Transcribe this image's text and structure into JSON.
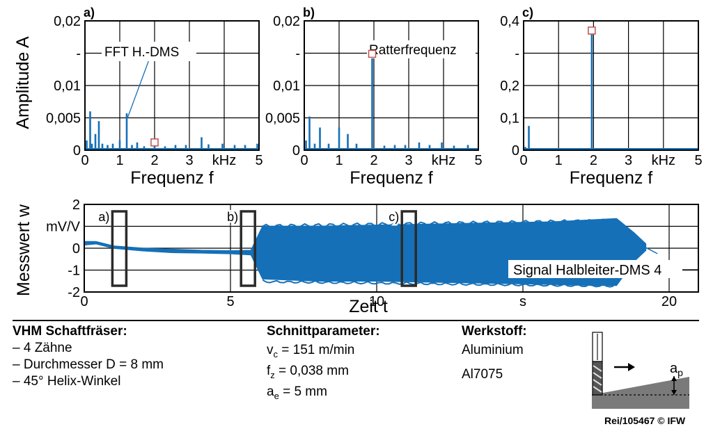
{
  "chart_data": [
    {
      "id": "a",
      "type": "bar",
      "panel_label": "a)",
      "title": "",
      "xlabel": "Frequenz f",
      "ylabel": "Amplitude A",
      "xlim": [
        0,
        5
      ],
      "ylim": [
        0,
        0.02
      ],
      "xticks": [
        "0",
        "1",
        "2",
        "3",
        "kHz",
        "5"
      ],
      "yticks": [
        "0",
        "0,005",
        "0,01",
        "-",
        "0,02"
      ],
      "grid": true,
      "annotation": "FFT H.-DMS",
      "marker": {
        "x": 2.0,
        "y": 0.0012
      },
      "x": [
        0.05,
        0.15,
        0.2,
        0.3,
        0.4,
        0.5,
        0.65,
        0.8,
        1.0,
        1.2,
        1.35,
        1.5,
        1.7,
        2.0,
        2.3,
        2.6,
        2.9,
        3.35,
        3.55,
        3.95,
        4.3,
        4.6,
        4.95
      ],
      "values": [
        0.0015,
        0.006,
        0.001,
        0.0025,
        0.0045,
        0.001,
        0.0008,
        0.001,
        0.0015,
        0.0057,
        0.0008,
        0.0012,
        0.0006,
        0.0008,
        0.0006,
        0.0008,
        0.0008,
        0.002,
        0.0009,
        0.001,
        0.0008,
        0.0008,
        0.001
      ]
    },
    {
      "id": "b",
      "type": "bar",
      "panel_label": "b)",
      "title": "",
      "xlabel": "Frequenz f",
      "xlim": [
        0,
        5
      ],
      "ylim": [
        0,
        0.02
      ],
      "xticks": [
        "0",
        "1",
        "2",
        "3",
        "kHz",
        "5"
      ],
      "yticks": [
        "0",
        "0,005",
        "0,01",
        "-",
        "0,02"
      ],
      "grid": true,
      "annotation": "Ratterfrequenz",
      "marker": {
        "x": 1.95,
        "y": 0.0149
      },
      "x": [
        0.05,
        0.15,
        0.3,
        0.45,
        0.7,
        1.0,
        1.25,
        1.5,
        1.95,
        2.3,
        2.6,
        2.9,
        3.3,
        3.6,
        3.95,
        4.3,
        4.7
      ],
      "values": [
        0.0015,
        0.0052,
        0.001,
        0.0035,
        0.001,
        0.0035,
        0.0025,
        0.001,
        0.015,
        0.0007,
        0.0008,
        0.0008,
        0.0012,
        0.0008,
        0.0012,
        0.0007,
        0.0008
      ]
    },
    {
      "id": "c",
      "type": "bar",
      "panel_label": "c)",
      "title": "",
      "xlabel": "Frequenz f",
      "xlim": [
        0,
        5
      ],
      "ylim": [
        0,
        0.4
      ],
      "xticks": [
        "0",
        "1",
        "2",
        "3",
        "kHz",
        "5"
      ],
      "yticks": [
        "0",
        "0,1",
        "0,2",
        "-",
        "0,4"
      ],
      "grid": true,
      "marker": {
        "x": 1.95,
        "y": 0.37
      },
      "x": [
        0.05,
        0.15,
        0.5,
        1.0,
        1.5,
        1.95,
        2.5,
        3.0,
        3.5,
        4.0,
        4.5
      ],
      "values": [
        0.01,
        0.075,
        0.006,
        0.004,
        0.004,
        0.375,
        0.004,
        0.003,
        0.004,
        0.003,
        0.004
      ]
    },
    {
      "id": "time",
      "type": "line",
      "title": "",
      "xlabel": "Zeit t",
      "ylabel": "Messwert w",
      "xlim": [
        0,
        21
      ],
      "ylim": [
        -2,
        2
      ],
      "xticks": [
        "0",
        "5",
        "10",
        "s",
        "20"
      ],
      "yticks": [
        "2",
        "mV/V",
        "0",
        "-1",
        "-2"
      ],
      "grid": true,
      "legend": "Signal Halbleiter-DMS 4",
      "window_labels": [
        "a)",
        "b)",
        "c)"
      ],
      "windows_x": [
        1.2,
        5.6,
        11.1
      ],
      "series": [
        {
          "x": [
            0,
            0.4,
            1.0,
            2,
            3,
            4,
            5,
            5.7,
            6.1,
            8,
            10,
            12,
            14,
            16,
            17.5,
            18.2,
            18.8,
            19.2
          ],
          "upper": [
            0.3,
            0.3,
            0.1,
            0.0,
            -0.05,
            -0.1,
            -0.12,
            -0.1,
            1.0,
            1.0,
            1.05,
            1.1,
            1.15,
            1.2,
            1.3,
            1.35,
            0.7,
            0.2
          ],
          "lower": [
            0.15,
            0.2,
            0.0,
            -0.12,
            -0.2,
            -0.22,
            -0.25,
            -0.3,
            -1.4,
            -1.5,
            -1.5,
            -1.55,
            -1.6,
            -1.65,
            -1.7,
            -1.7,
            -0.6,
            -0.1
          ]
        }
      ]
    }
  ],
  "tool": {
    "heading": "VHM Schaftfräser:",
    "items": [
      "– 4 Zähne",
      "– Durchmesser D = 8 mm",
      "– 45° Helix-Winkel"
    ]
  },
  "params": {
    "heading": "Schnittparameter:",
    "vc_sym": "v",
    "vc_sub": "c",
    "vc_val": " = 151 m/min",
    "fz_sym": "f",
    "fz_sub": "z",
    "fz_val": "  = 0,038 mm",
    "ae_sym": "a",
    "ae_sub": "e",
    "ae_val": " = 5 mm"
  },
  "material": {
    "heading": "Werkstoff:",
    "items": [
      "Aluminium",
      "Al7075"
    ]
  },
  "sketch": {
    "ap_sym": "a",
    "ap_sub": "p"
  },
  "footer": "Rei/105467 © IFW"
}
